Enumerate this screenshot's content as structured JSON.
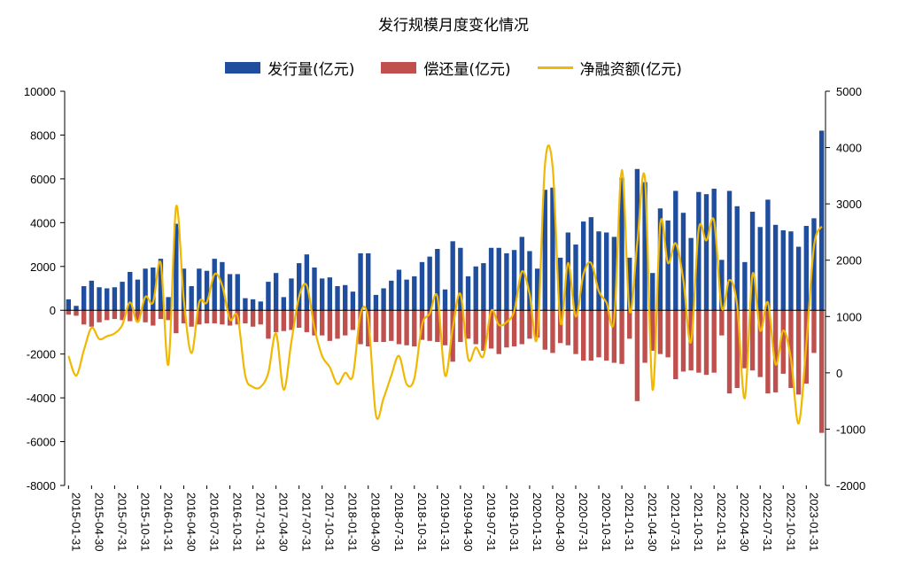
{
  "chart_data": {
    "type": "bar",
    "title": "发行规模月度变化情况",
    "colors": {
      "issuance": "#1f4e9e",
      "repayment": "#c0504d",
      "net": "#f0b800"
    },
    "y_left": {
      "min": -8000,
      "max": 10000,
      "ticks": [
        "-8000",
        "-6000",
        "-4000",
        "-2000",
        "0",
        "2000",
        "4000",
        "6000",
        "8000",
        "10000"
      ]
    },
    "y_right": {
      "min": -2000,
      "max": 5000,
      "ticks": [
        "-2000",
        "-1000",
        "0",
        "1000",
        "2000",
        "3000",
        "4000",
        "5000"
      ]
    },
    "x_tick_labels": [
      "2015-01-31",
      "2015-04-30",
      "2015-07-31",
      "2015-10-31",
      "2016-01-31",
      "2016-04-30",
      "2016-07-31",
      "2016-10-31",
      "2017-01-31",
      "2017-04-30",
      "2017-07-31",
      "2017-10-31",
      "2018-01-31",
      "2018-04-30",
      "2018-07-31",
      "2018-10-31",
      "2019-01-31",
      "2019-04-30",
      "2019-07-31",
      "2019-10-31",
      "2020-01-31",
      "2020-04-30",
      "2020-07-31",
      "2020-10-31",
      "2021-01-31",
      "2021-04-30",
      "2021-07-31",
      "2021-10-31",
      "2022-01-31",
      "2022-04-30",
      "2022-07-31",
      "2022-10-31",
      "2023-01-31"
    ],
    "months_start": "2015-01",
    "series": [
      {
        "name": "发行量(亿元)",
        "kind": "bar",
        "axis": "left",
        "values": [
          500,
          200,
          1100,
          1350,
          1050,
          1000,
          1050,
          1300,
          1750,
          1400,
          1900,
          1950,
          2350,
          600,
          3950,
          1900,
          1100,
          1900,
          1800,
          2350,
          2200,
          1650,
          1650,
          550,
          500,
          400,
          1300,
          1700,
          600,
          1450,
          2150,
          2550,
          1950,
          1450,
          1500,
          1100,
          1150,
          850,
          2600,
          2600,
          700,
          1000,
          1350,
          1850,
          1400,
          1550,
          2200,
          2450,
          2800,
          950,
          3150,
          2850,
          1550,
          2000,
          2150,
          2850,
          2850,
          2600,
          2750,
          3350,
          2700,
          1900,
          5500,
          5600,
          2400,
          3550,
          3000,
          4050,
          4250,
          3600,
          3550,
          3350,
          6050,
          2400,
          6450,
          5850,
          1700,
          4650,
          4100,
          5450,
          4450,
          3300,
          5400,
          5300,
          5550,
          2300,
          5450,
          4750,
          2200,
          4500,
          3800,
          5050,
          3900,
          3650,
          3600,
          2900,
          3850,
          4200,
          8200
        ]
      },
      {
        "name": "偿还量(亿元)",
        "kind": "bar",
        "axis": "left",
        "values": [
          -200,
          -250,
          -650,
          -750,
          -550,
          -450,
          -400,
          -450,
          -500,
          -500,
          -550,
          -700,
          -400,
          -450,
          -1050,
          -600,
          -750,
          -650,
          -600,
          -600,
          -650,
          -700,
          -650,
          -600,
          -750,
          -650,
          -1300,
          -1000,
          -950,
          -900,
          -800,
          -1000,
          -1150,
          -1150,
          -1400,
          -1300,
          -1150,
          -900,
          -1550,
          -1650,
          -1450,
          -1450,
          -1400,
          -1550,
          -1600,
          -1650,
          -1350,
          -1400,
          -1450,
          -1600,
          -2350,
          -1450,
          -1300,
          -1550,
          -1850,
          -1750,
          -2000,
          -1700,
          -1650,
          -1550,
          -1300,
          -1250,
          -1800,
          -1950,
          -1500,
          -1600,
          -2000,
          -2300,
          -2300,
          -2150,
          -2300,
          -2400,
          -2450,
          -1300,
          -4150,
          -2400,
          -1850,
          -2000,
          -2150,
          -3150,
          -2800,
          -2750,
          -2850,
          -2950,
          -2850,
          -1150,
          -3800,
          -3550,
          -2650,
          -2750,
          -3050,
          -3800,
          -3750,
          -2900,
          -3550,
          -3850,
          -3350,
          -1950,
          -5600
        ]
      },
      {
        "name": "净融资额(亿元)",
        "kind": "line",
        "axis": "right",
        "values": [
          300,
          -50,
          400,
          800,
          600,
          650,
          700,
          850,
          1250,
          900,
          1350,
          1250,
          1950,
          150,
          2950,
          1300,
          350,
          1250,
          1250,
          1750,
          1550,
          950,
          1000,
          -50,
          -250,
          -250,
          0,
          700,
          -300,
          550,
          1350,
          1550,
          800,
          300,
          100,
          -200,
          0,
          -50,
          1050,
          950,
          -750,
          -450,
          -50,
          300,
          -200,
          -100,
          850,
          1050,
          1350,
          -50,
          800,
          1400,
          250,
          450,
          300,
          1100,
          850,
          900,
          1100,
          1800,
          1400,
          650,
          3700,
          3650,
          900,
          1950,
          1000,
          1750,
          1950,
          1450,
          1250,
          950,
          3600,
          1100,
          2300,
          3450,
          -300,
          2650,
          1950,
          2300,
          1650,
          550,
          2550,
          2350,
          2700,
          1150,
          1650,
          1200,
          -450,
          1750,
          750,
          1250,
          150,
          750,
          250,
          -900,
          500,
          2250,
          2600
        ]
      }
    ]
  }
}
